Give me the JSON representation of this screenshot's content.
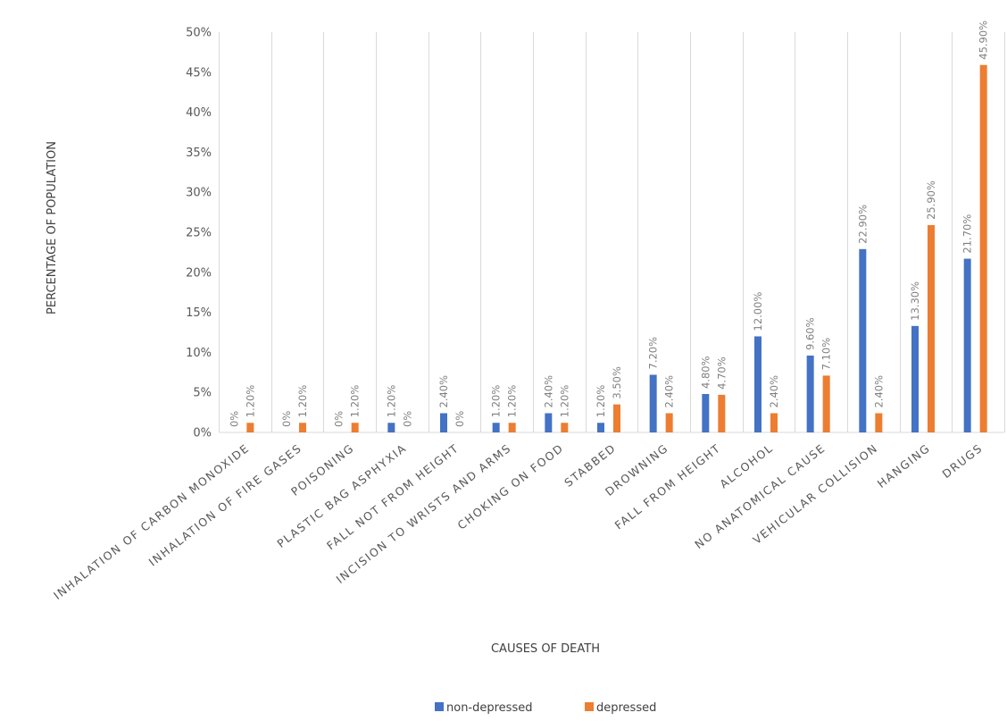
{
  "chart_data": {
    "type": "bar",
    "title": "",
    "xlabel": "CAUSES OF DEATH",
    "ylabel": "PERCENTAGE OF POPULATION",
    "ylim": [
      0,
      50
    ],
    "yticks": [
      0,
      5,
      10,
      15,
      20,
      25,
      30,
      35,
      40,
      45,
      50
    ],
    "ytick_labels": [
      "0%",
      "5%",
      "10%",
      "15%",
      "20%",
      "25%",
      "30%",
      "35%",
      "40%",
      "45%",
      "50%"
    ],
    "grid": "vertical",
    "legend_position": "bottom",
    "categories": [
      "INHALATION OF CARBON MONOXIDE",
      "INHALATION OF FIRE GASES",
      "POISONING",
      "PLASTIC BAG ASPHYXIA",
      "FALL NOT FROM HEIGHT",
      "INCISION TO WRISTS AND ARMS",
      "CHOKING ON FOOD",
      "STABBED",
      "DROWNING",
      "FALL FROM HEIGHT",
      "ALCOHOL",
      "NO ANATOMICAL CAUSE",
      "VEHICULAR COLLISION",
      "HANGING",
      "DRUGS"
    ],
    "series": [
      {
        "name": "non-depressed",
        "color": "#4472C4",
        "values": [
          0,
          0,
          0,
          1.2,
          2.4,
          1.2,
          2.4,
          1.2,
          7.2,
          4.8,
          12.0,
          9.6,
          22.9,
          13.3,
          21.7
        ],
        "labels": [
          "0%",
          "0%",
          "0%",
          "1.20%",
          "2.40%",
          "1.20%",
          "2.40%",
          "1.20%",
          "7.20%",
          "4.80%",
          "12.00%",
          "9.60%",
          "22.90%",
          "13.30%",
          "21.70%"
        ]
      },
      {
        "name": "depressed",
        "color": "#ED7D31",
        "values": [
          1.2,
          1.2,
          1.2,
          0,
          0,
          1.2,
          1.2,
          3.5,
          2.4,
          4.7,
          2.4,
          7.1,
          2.4,
          25.9,
          45.9
        ],
        "labels": [
          "1.20%",
          "1.20%",
          "1.20%",
          "0%",
          "0%",
          "1.20%",
          "1.20%",
          "3.50%",
          "2.40%",
          "4.70%",
          "2.40%",
          "7.10%",
          "2.40%",
          "25.90%",
          "45.90%"
        ]
      }
    ]
  }
}
